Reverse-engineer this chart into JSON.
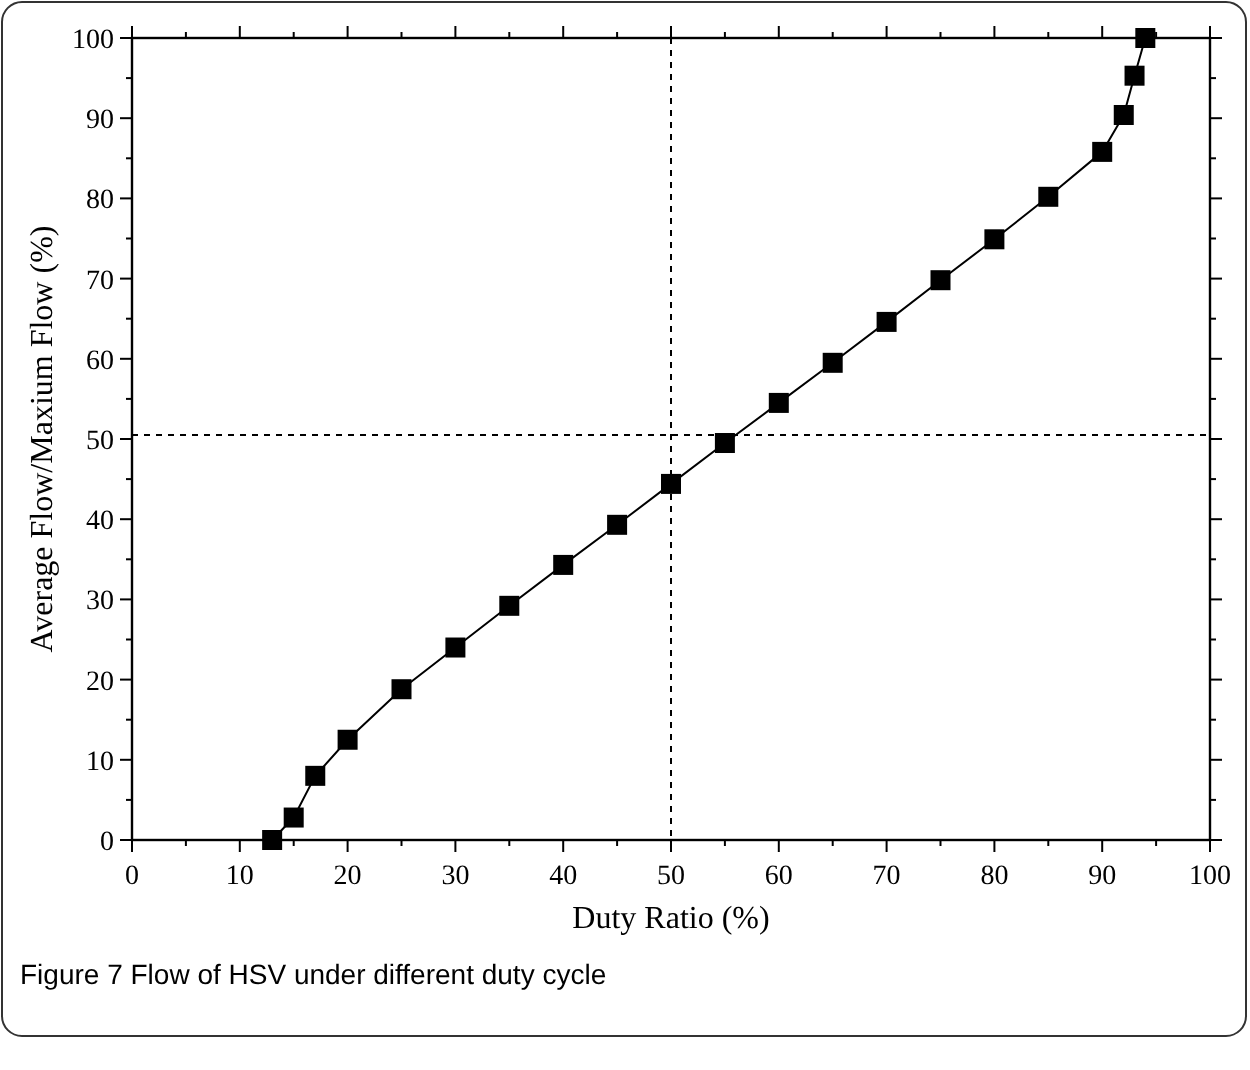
{
  "chart_data": {
    "type": "line",
    "xlabel": "Duty Ratio (%)",
    "ylabel": "Average Flow/Maxium Flow (%)",
    "annotations": [
      "Figure 7  Flow of HSV under different duty cycle"
    ],
    "x": [
      13,
      15,
      17,
      20,
      25,
      30,
      35,
      40,
      45,
      50,
      55,
      60,
      65,
      70,
      75,
      80,
      85,
      90,
      92,
      93,
      94
    ],
    "series": [
      {
        "color": "#000000",
        "values": [
          0,
          2.8,
          8,
          12.5,
          18.8,
          24,
          29.2,
          34.3,
          39.3,
          44.4,
          49.5,
          54.5,
          59.5,
          64.6,
          69.8,
          74.9,
          80.2,
          85.8,
          90.4,
          95.3,
          100
        ]
      }
    ],
    "xlim": [
      0,
      100
    ],
    "ylim": [
      0,
      100
    ],
    "xticks": [
      0,
      10,
      20,
      30,
      40,
      50,
      60,
      70,
      80,
      90,
      100
    ],
    "yticks": [
      0,
      10,
      20,
      30,
      40,
      50,
      60,
      70,
      80,
      90,
      100
    ],
    "ref_lines": [
      {
        "axis": "x",
        "value": 50,
        "line_style": "dashed"
      },
      {
        "axis": "y",
        "value": 50.5,
        "line_style": "dashed"
      }
    ],
    "marker": "square",
    "line_style": "solid"
  }
}
